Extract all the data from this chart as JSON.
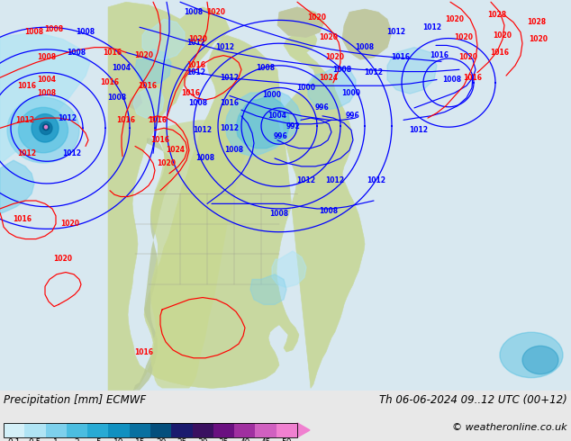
{
  "title_left": "Precipitation [mm] ECMWF",
  "title_right": "Th 06-06-2024 09..12 UTC (00+12)",
  "copyright": "© weatheronline.co.uk",
  "colorbar_labels": [
    "0.1",
    "0.5",
    "1",
    "2",
    "5",
    "10",
    "15",
    "20",
    "25",
    "30",
    "35",
    "40",
    "45",
    "50"
  ],
  "colorbar_colors": [
    "#d4f0f8",
    "#b0e4f4",
    "#7dd0ec",
    "#4bbde0",
    "#28aad4",
    "#1090c0",
    "#0870a0",
    "#044e7c",
    "#1a1a6e",
    "#3a1060",
    "#6a1080",
    "#a030a0",
    "#d060c0",
    "#f080d0"
  ],
  "ocean_color": "#d8e8f0",
  "land_color": "#c8d8a0",
  "mountain_color": "#b0b890",
  "bg_color": "#d8e8f0",
  "bottom_bg": "#e8e8e8",
  "figsize": [
    6.34,
    4.9
  ],
  "dpi": 100,
  "map_extent": [
    -180,
    -50,
    15,
    80
  ]
}
